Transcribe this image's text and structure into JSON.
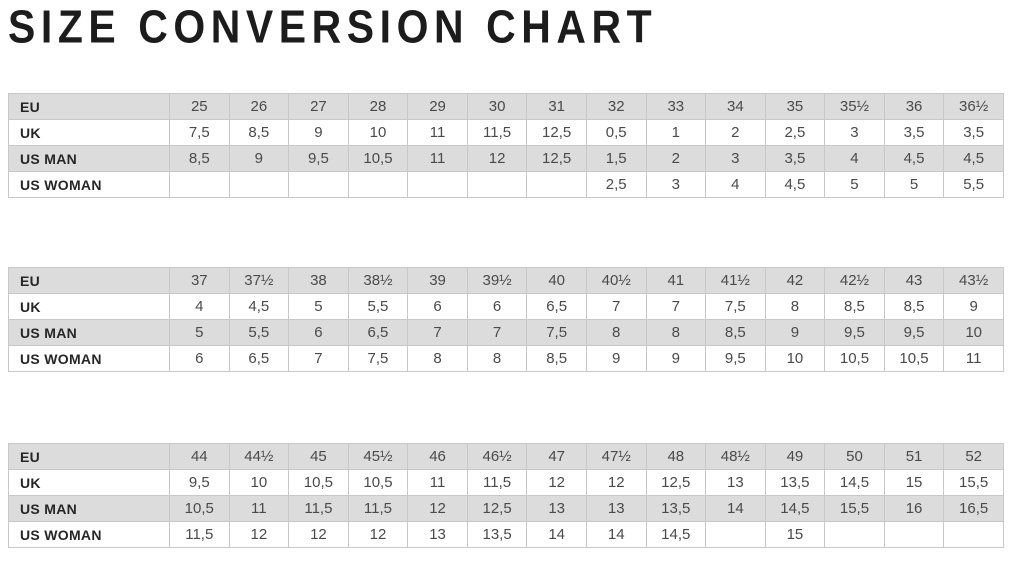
{
  "page": {
    "title": "SIZE CONVERSION CHART"
  },
  "colors": {
    "background": "#ffffff",
    "shaded_row_bg": "#dcdcdc",
    "border": "#c8c8c8",
    "title_text": "#1c1c1c",
    "label_text": "#262626",
    "cell_text": "#4a4a4a"
  },
  "chart_data": [
    {
      "type": "table",
      "name": "sizes-eu-25-to-36half",
      "row_header_labels": [
        "EU",
        "UK",
        "US MAN",
        "US WOMAN"
      ],
      "rows": [
        {
          "label": "EU",
          "shaded": true,
          "values": [
            "25",
            "26",
            "27",
            "28",
            "29",
            "30",
            "31",
            "32",
            "33",
            "34",
            "35",
            "35½",
            "36",
            "36½"
          ]
        },
        {
          "label": "UK",
          "shaded": false,
          "values": [
            "7,5",
            "8,5",
            "9",
            "10",
            "11",
            "11,5",
            "12,5",
            "0,5",
            "1",
            "2",
            "2,5",
            "3",
            "3,5",
            "3,5"
          ]
        },
        {
          "label": "US MAN",
          "shaded": true,
          "values": [
            "8,5",
            "9",
            "9,5",
            "10,5",
            "11",
            "12",
            "12,5",
            "1,5",
            "2",
            "3",
            "3,5",
            "4",
            "4,5",
            "4,5"
          ]
        },
        {
          "label": "US WOMAN",
          "shaded": false,
          "values": [
            "",
            "",
            "",
            "",
            "",
            "",
            "",
            "2,5",
            "3",
            "4",
            "4,5",
            "5",
            "5",
            "5,5"
          ]
        }
      ]
    },
    {
      "type": "table",
      "name": "sizes-eu-37-to-43half",
      "row_header_labels": [
        "EU",
        "UK",
        "US MAN",
        "US WOMAN"
      ],
      "rows": [
        {
          "label": "EU",
          "shaded": true,
          "values": [
            "37",
            "37½",
            "38",
            "38½",
            "39",
            "39½",
            "40",
            "40½",
            "41",
            "41½",
            "42",
            "42½",
            "43",
            "43½"
          ]
        },
        {
          "label": "UK",
          "shaded": false,
          "values": [
            "4",
            "4,5",
            "5",
            "5,5",
            "6",
            "6",
            "6,5",
            "7",
            "7",
            "7,5",
            "8",
            "8,5",
            "8,5",
            "9"
          ]
        },
        {
          "label": "US MAN",
          "shaded": true,
          "values": [
            "5",
            "5,5",
            "6",
            "6,5",
            "7",
            "7",
            "7,5",
            "8",
            "8",
            "8,5",
            "9",
            "9,5",
            "9,5",
            "10"
          ]
        },
        {
          "label": "US WOMAN",
          "shaded": false,
          "values": [
            "6",
            "6,5",
            "7",
            "7,5",
            "8",
            "8",
            "8,5",
            "9",
            "9",
            "9,5",
            "10",
            "10,5",
            "10,5",
            "11"
          ]
        }
      ]
    },
    {
      "type": "table",
      "name": "sizes-eu-44-to-52",
      "row_header_labels": [
        "EU",
        "UK",
        "US MAN",
        "US WOMAN"
      ],
      "rows": [
        {
          "label": "EU",
          "shaded": true,
          "values": [
            "44",
            "44½",
            "45",
            "45½",
            "46",
            "46½",
            "47",
            "47½",
            "48",
            "48½",
            "49",
            "50",
            "51",
            "52"
          ]
        },
        {
          "label": "UK",
          "shaded": false,
          "values": [
            "9,5",
            "10",
            "10,5",
            "10,5",
            "11",
            "11,5",
            "12",
            "12",
            "12,5",
            "13",
            "13,5",
            "14,5",
            "15",
            "15,5"
          ]
        },
        {
          "label": "US MAN",
          "shaded": true,
          "values": [
            "10,5",
            "11",
            "11,5",
            "11,5",
            "12",
            "12,5",
            "13",
            "13",
            "13,5",
            "14",
            "14,5",
            "15,5",
            "16",
            "16,5"
          ]
        },
        {
          "label": "US WOMAN",
          "shaded": false,
          "values": [
            "11,5",
            "12",
            "12",
            "12",
            "13",
            "13,5",
            "14",
            "14",
            "14,5",
            "",
            "15",
            "",
            "",
            ""
          ]
        }
      ]
    }
  ]
}
